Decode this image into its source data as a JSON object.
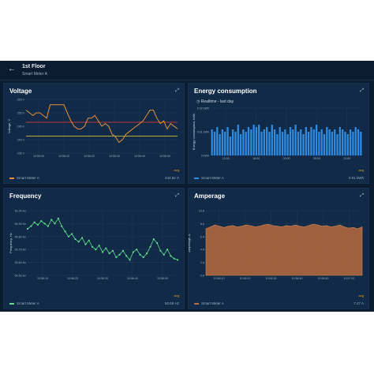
{
  "header": {
    "title": "1st Floor",
    "subtitle": "Smart Meter A"
  },
  "cards": {
    "voltage": {
      "title": "Voltage",
      "legend": "Smart Meter A",
      "agg": "avg",
      "value": "242.82 V"
    },
    "energy": {
      "title": "Energy consumption",
      "realtime": "Realtime - last day",
      "legend": "Smart Meter A",
      "agg": "avg",
      "value": "0.01 kWh"
    },
    "frequency": {
      "title": "Frequency",
      "legend": "Smart Meter A",
      "agg": "avg",
      "value": "50.65 Hz"
    },
    "amperage": {
      "title": "Amperage",
      "legend": "Smart Meter A",
      "agg": "avg",
      "value": "7.47 A"
    }
  },
  "colors": {
    "voltage": "#e8903a",
    "red_threshold": "#d63a3a",
    "yellow_threshold": "#c9c23a",
    "energy": "#2f8be0",
    "frequency": "#5fe08a",
    "amperage": "#b86a3f"
  },
  "chart_data": [
    {
      "type": "line",
      "title": "Voltage",
      "ylabel": "Voltage, V",
      "ylim": [
        235,
        255
      ],
      "y_ticks": [
        "255 V",
        "250 V",
        "245 V",
        "240 V",
        "235 V"
      ],
      "x_ticks": [
        "10:56:00",
        "10:56:10",
        "10:56:20",
        "10:56:30",
        "10:56:40",
        "10:56:50"
      ],
      "thresholds": [
        246.5,
        241.3
      ],
      "series": [
        {
          "name": "Smart Meter A",
          "values": [
            251,
            250,
            249,
            250,
            250,
            249,
            248,
            253,
            253,
            253,
            253,
            253,
            250,
            247,
            245,
            244,
            244,
            245,
            248,
            248,
            249,
            247,
            245,
            246,
            245,
            242,
            241,
            239,
            240,
            242,
            243,
            244,
            245,
            246,
            247,
            249,
            251,
            251,
            248,
            246,
            247,
            244,
            246,
            245,
            244
          ]
        }
      ]
    },
    {
      "type": "bar",
      "title": "Energy consumption",
      "ylabel": "Energy consumption, kWh",
      "ylim": [
        0,
        0.02
      ],
      "y_ticks": [
        "0.02 kWh",
        "0.01 kWh",
        "0 kWh"
      ],
      "x_ticks": [
        "12:00",
        "18:00",
        "00:00",
        "06:00",
        "12:00"
      ],
      "series": [
        {
          "name": "Smart Meter A",
          "values": [
            0.011,
            0.01,
            0.012,
            0.009,
            0.011,
            0.01,
            0.012,
            0.008,
            0.011,
            0.01,
            0.013,
            0.009,
            0.011,
            0.01,
            0.012,
            0.011,
            0.013,
            0.012,
            0.013,
            0.01,
            0.011,
            0.012,
            0.01,
            0.013,
            0.011,
            0.009,
            0.012,
            0.01,
            0.011,
            0.009,
            0.012,
            0.011,
            0.013,
            0.01,
            0.011,
            0.009,
            0.012,
            0.01,
            0.012,
            0.011,
            0.013,
            0.01,
            0.011,
            0.009,
            0.012,
            0.011,
            0.01,
            0.011,
            0.009,
            0.012,
            0.011,
            0.01,
            0.009,
            0.011,
            0.01,
            0.012,
            0.011,
            0.01
          ]
        }
      ]
    },
    {
      "type": "line",
      "title": "Frequency",
      "ylabel": "Frequency, Hz",
      "ylim": [
        50.5,
        51.0
      ],
      "y_ticks": [
        "51.00 Hz",
        "50.90 Hz",
        "50.80 Hz",
        "50.70 Hz",
        "50.60 Hz",
        "50.50 Hz"
      ],
      "x_ticks": [
        "10:56:10",
        "10:56:20",
        "10:56:30",
        "10:56:40",
        "10:56:50"
      ],
      "series": [
        {
          "name": "Smart Meter A",
          "values": [
            50.86,
            50.88,
            50.91,
            50.89,
            50.92,
            50.9,
            50.88,
            50.93,
            50.9,
            50.94,
            50.88,
            50.84,
            50.8,
            50.82,
            50.78,
            50.76,
            50.79,
            50.74,
            50.77,
            50.72,
            50.7,
            50.73,
            50.68,
            50.71,
            50.67,
            50.69,
            50.64,
            50.66,
            50.69,
            50.65,
            50.62,
            50.68,
            50.7,
            50.66,
            50.64,
            50.67,
            50.72,
            50.78,
            50.75,
            50.69,
            50.66,
            50.7,
            50.65,
            50.63,
            50.62
          ]
        }
      ]
    },
    {
      "type": "area",
      "title": "Amperage",
      "ylabel": "Amperage, A",
      "ylim": [
        0,
        10
      ],
      "y_ticks": [
        "10 A",
        "8 A",
        "6 A",
        "4 A",
        "2 A",
        "0 A"
      ],
      "x_ticks": [
        "10:56:10",
        "10:56:20",
        "10:56:30",
        "10:56:40",
        "10:56:50",
        "10:57:00"
      ],
      "series": [
        {
          "name": "Smart Meter A",
          "values": [
            7.2,
            7.5,
            7.8,
            7.6,
            7.4,
            7.6,
            7.7,
            7.5,
            7.6,
            7.8,
            7.7,
            7.5,
            7.6,
            7.8,
            7.9,
            7.7,
            7.6,
            7.5,
            7.7,
            7.6,
            7.8,
            7.6,
            7.5,
            7.7,
            7.9,
            7.8,
            7.6,
            7.7,
            7.5,
            7.6,
            7.8,
            7.5,
            7.3,
            7.4,
            7.2,
            7.5
          ]
        }
      ]
    }
  ]
}
